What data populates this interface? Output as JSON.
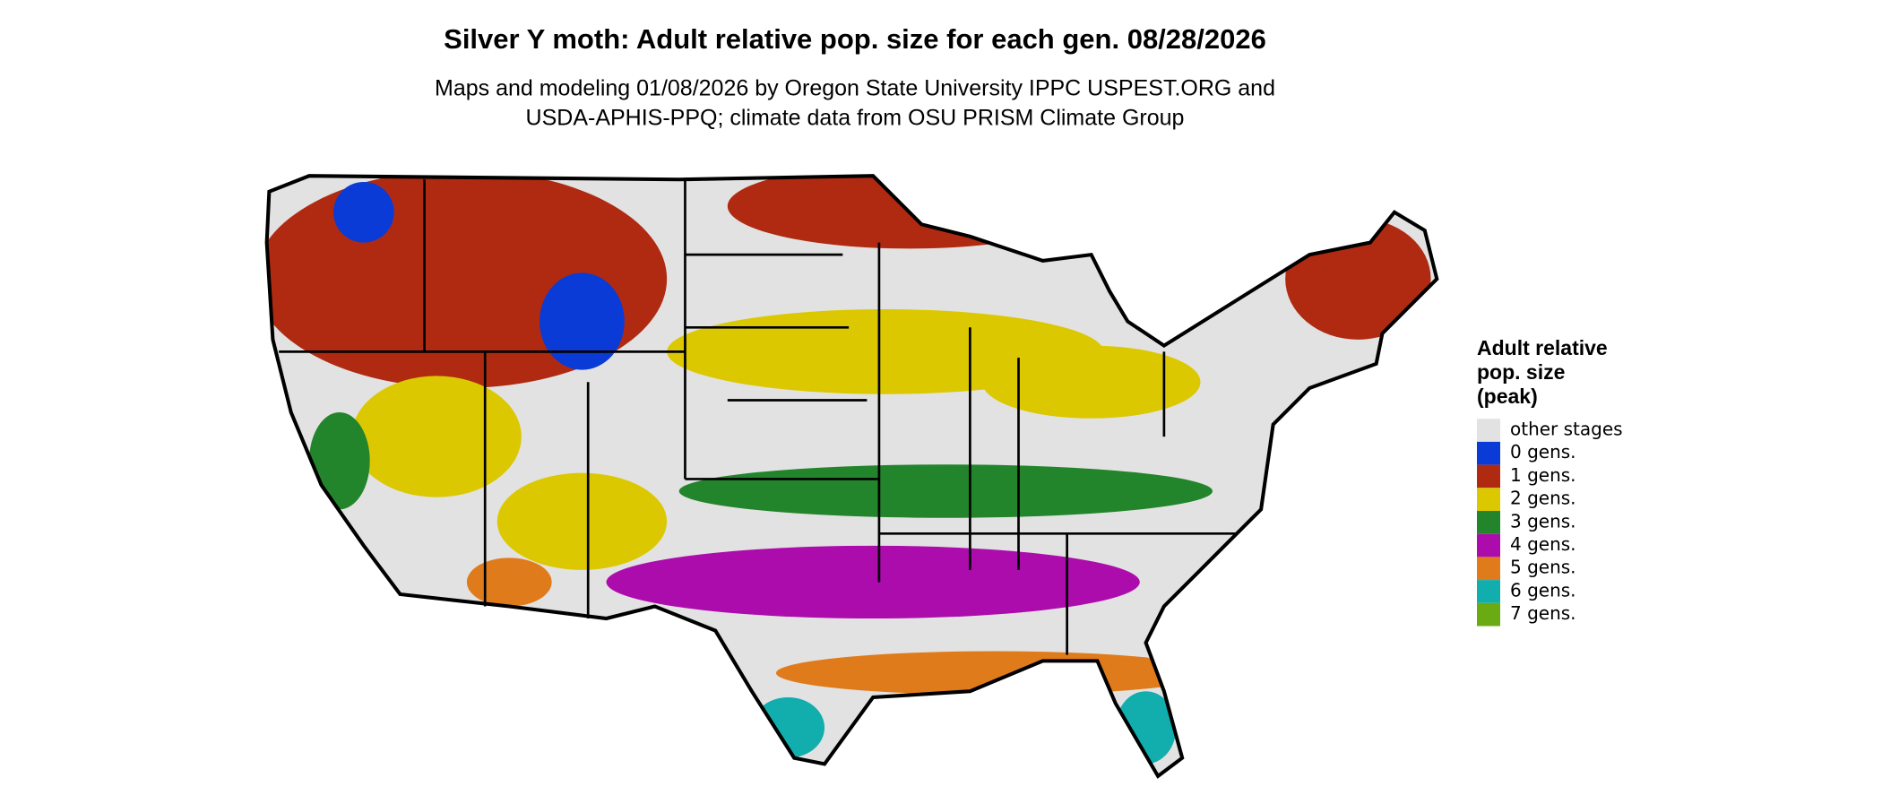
{
  "title": "Silver Y moth: Adult relative pop. size for each gen. 08/28/2026",
  "subtitle": [
    "Maps and modeling 01/08/2026 by Oregon State University IPPC USPEST.ORG and",
    "USDA-APHIS-PPQ; climate data from OSU PRISM Climate Group"
  ],
  "legend": {
    "title": [
      "Adult relative",
      "pop. size",
      "(peak)"
    ],
    "items": [
      {
        "label": "other stages",
        "color": "#e2e2e2"
      },
      {
        "label": "0 gens.",
        "color": "#0a3bd6"
      },
      {
        "label": "1 gens.",
        "color": "#b02a12"
      },
      {
        "label": "2 gens.",
        "color": "#dcc800"
      },
      {
        "label": "3 gens.",
        "color": "#23852b"
      },
      {
        "label": "4 gens.",
        "color": "#ad0cad"
      },
      {
        "label": "5 gens.",
        "color": "#e07b1c"
      },
      {
        "label": "6 gens.",
        "color": "#12adad"
      },
      {
        "label": "7 gens.",
        "color": "#6aaa12"
      }
    ]
  }
}
